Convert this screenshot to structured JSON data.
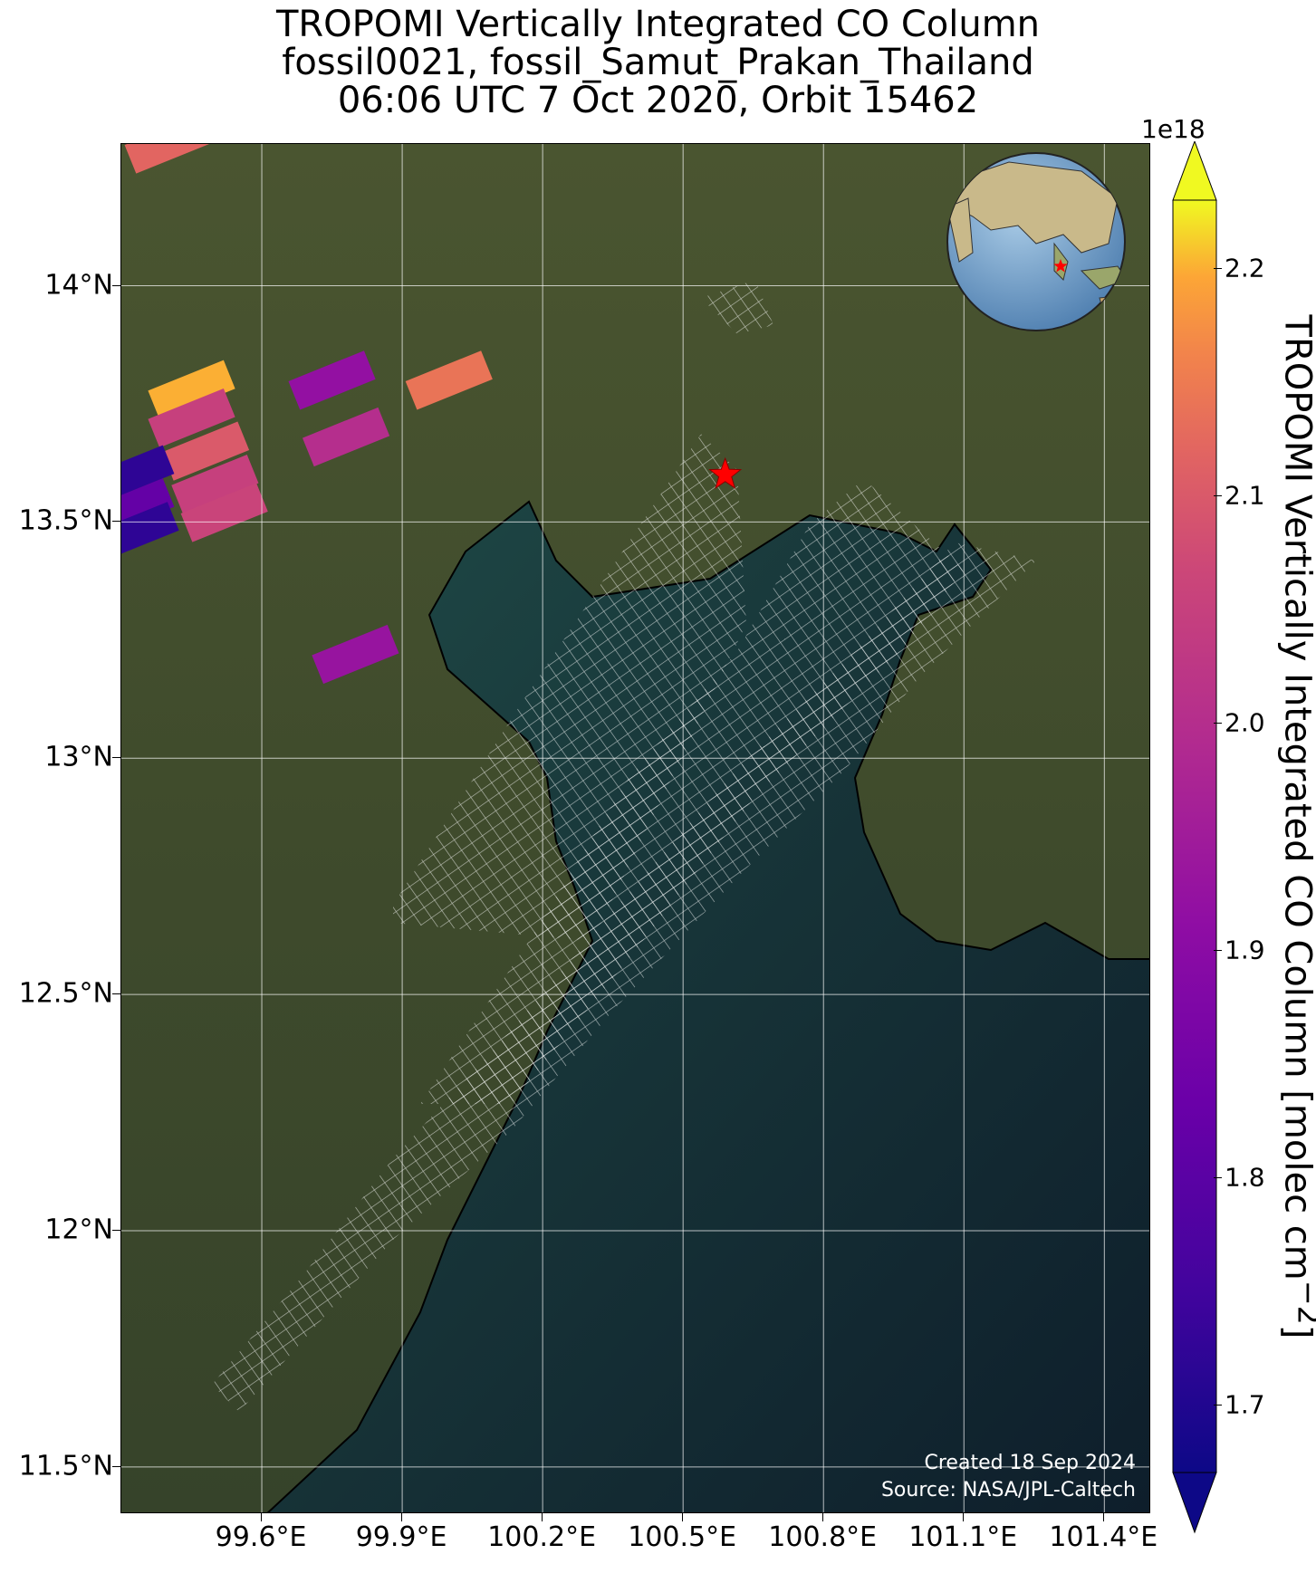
{
  "title": {
    "line1": "TROPOMI Vertically Integrated CO Column",
    "line2": "fossil0021, fossil_Samut_Prakan_Thailand",
    "line3": "06:06 UTC 7 Oct 2020, Orbit 15462"
  },
  "map": {
    "extent": {
      "lon_min": 99.3,
      "lon_max": 101.5,
      "lat_min": 11.4,
      "lat_max": 14.3
    },
    "lat_ticks": [
      {
        "value": 14.0,
        "label": "14°N"
      },
      {
        "value": 13.5,
        "label": "13.5°N"
      },
      {
        "value": 13.0,
        "label": "13°N"
      },
      {
        "value": 12.5,
        "label": "12.5°N"
      },
      {
        "value": 12.0,
        "label": "12°N"
      },
      {
        "value": 11.5,
        "label": "11.5°N"
      }
    ],
    "lon_ticks": [
      {
        "value": 99.6,
        "label": "99.6°E"
      },
      {
        "value": 99.9,
        "label": "99.9°E"
      },
      {
        "value": 100.2,
        "label": "100.2°E"
      },
      {
        "value": 100.5,
        "label": "100.5°E"
      },
      {
        "value": 100.8,
        "label": "100.8°E"
      },
      {
        "value": 101.1,
        "label": "101.1°E"
      },
      {
        "value": 101.4,
        "label": "101.4°E"
      }
    ],
    "site_marker": {
      "name": "fossil_Samut_Prakan_Thailand",
      "lon": 100.59,
      "lat": 13.6,
      "color": "#ff0000"
    },
    "colors": {
      "land": "#3d4a2a",
      "sea": "#0f1f2c",
      "gridline": "#ffffff"
    },
    "credit_line1": "Created 18 Sep 2024",
    "credit_line2": "Source: NASA/JPL-Caltech",
    "inset_globe": {
      "marker_color": "#ff0000"
    }
  },
  "chart_data": {
    "type": "heatmap",
    "colormap": "plasma",
    "units": "molec cm^-2",
    "pixels": [
      {
        "lon": 99.45,
        "lat": 13.78,
        "value": 2.2
      },
      {
        "lon": 99.45,
        "lat": 13.72,
        "value": 2.05
      },
      {
        "lon": 99.48,
        "lat": 13.65,
        "value": 2.1
      },
      {
        "lon": 99.5,
        "lat": 13.58,
        "value": 2.05
      },
      {
        "lon": 99.52,
        "lat": 13.52,
        "value": 2.06
      },
      {
        "lon": 99.75,
        "lat": 13.8,
        "value": 1.92
      },
      {
        "lon": 99.78,
        "lat": 13.68,
        "value": 2.0
      },
      {
        "lon": 100.0,
        "lat": 13.8,
        "value": 2.14
      },
      {
        "lon": 99.8,
        "lat": 13.22,
        "value": 1.93
      },
      {
        "lon": 99.32,
        "lat": 13.6,
        "value": 1.72
      },
      {
        "lon": 99.32,
        "lat": 13.53,
        "value": 1.82
      },
      {
        "lon": 99.33,
        "lat": 13.48,
        "value": 1.72
      },
      {
        "lon": 99.4,
        "lat": 14.3,
        "value": 2.12
      }
    ],
    "colorbar": {
      "min": 1.67,
      "max": 2.23,
      "ticks": [
        {
          "value": 1.7,
          "label": "1.7"
        },
        {
          "value": 1.8,
          "label": "1.8"
        },
        {
          "value": 1.9,
          "label": "1.9"
        },
        {
          "value": 2.0,
          "label": "2.0"
        },
        {
          "value": 2.1,
          "label": "2.1"
        },
        {
          "value": 2.2,
          "label": "2.2"
        }
      ],
      "exponent_label": "1e18",
      "label": "TROPOMI Vertically Integrated CO Column [molec cm",
      "label_sup": "−2",
      "label_end": "]",
      "extend": "both"
    }
  }
}
